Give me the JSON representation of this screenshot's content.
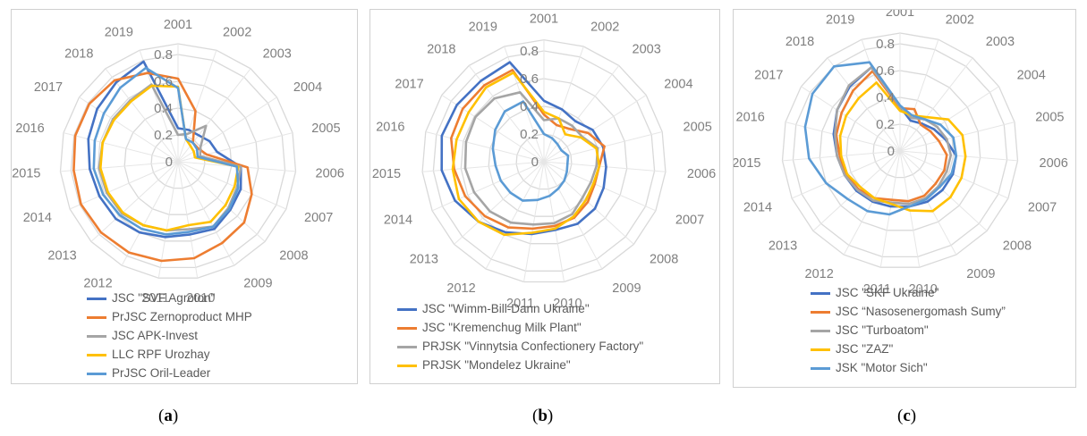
{
  "chart_data": [
    {
      "type": "radar",
      "panel_label": "a",
      "categories": [
        "2001",
        "2002",
        "2003",
        "2004",
        "2005",
        "2006",
        "2007",
        "2008",
        "2009",
        "2010",
        "2011",
        "2012",
        "2013",
        "2014",
        "2015",
        "2016",
        "2017",
        "2018",
        "2019"
      ],
      "radial_ticks": [
        "0",
        "0.2",
        "0.4",
        "0.6",
        "0.8"
      ],
      "rlim": [
        0,
        0.8
      ],
      "series": [
        {
          "name": "JSC \"SVF Agroton\"",
          "color": "#4472C4",
          "values": [
            0.25,
            0.25,
            0.25,
            0.28,
            0.3,
            0.47,
            0.51,
            0.53,
            0.57,
            0.55,
            0.57,
            0.6,
            0.63,
            0.64,
            0.66,
            0.69,
            0.72,
            0.75,
            0.79
          ]
        },
        {
          "name": "PrJSC Zernoproduct MHP",
          "color": "#ED7D31",
          "values": [
            0.62,
            0.4,
            0.18,
            0.18,
            0.22,
            0.52,
            0.6,
            0.67,
            0.69,
            0.73,
            0.75,
            0.77,
            0.78,
            0.79,
            0.78,
            0.79,
            0.79,
            0.77,
            0.7
          ]
        },
        {
          "name": "JSC APK-Invest",
          "color": "#A5A5A5",
          "values": [
            0.2,
            0.22,
            0.34,
            0.2,
            0.17,
            0.47,
            0.48,
            0.51,
            0.55,
            0.51,
            0.52,
            0.54,
            0.57,
            0.58,
            0.59,
            0.58,
            0.58,
            0.58,
            0.61
          ]
        },
        {
          "name": " LLC RPF Urozhay",
          "color": "#FFC000",
          "values": [
            0.56,
            0.18,
            0.15,
            0.14,
            0.13,
            0.45,
            0.46,
            0.48,
            0.51,
            0.48,
            0.52,
            0.54,
            0.56,
            0.57,
            0.58,
            0.58,
            0.57,
            0.57,
            0.6
          ]
        },
        {
          "name": "PrJSC Oril-Leader",
          "color": "#5B9BD5",
          "values": [
            0.55,
            0.18,
            0.18,
            0.17,
            0.15,
            0.44,
            0.49,
            0.52,
            0.55,
            0.53,
            0.55,
            0.57,
            0.59,
            0.61,
            0.63,
            0.64,
            0.66,
            0.7,
            0.74
          ]
        }
      ]
    },
    {
      "type": "radar",
      "panel_label": "b",
      "categories": [
        "2001",
        "2002",
        "2003",
        "2004",
        "2005",
        "2006",
        "2007",
        "2008",
        "2009",
        "2010",
        "2011",
        "2012",
        "2013",
        "2014",
        "2015",
        "2016",
        "2017",
        "2018",
        "2019"
      ],
      "radial_ticks": [
        "0",
        "0.2",
        "0.4",
        "0.6",
        "0.8"
      ],
      "rlim": [
        0,
        0.8
      ],
      "series": [
        {
          "name": "JSC \"Wimm-Bill-Dann Ukraine\"",
          "color": "#4472C4",
          "values": [
            0.44,
            0.4,
            0.37,
            0.42,
            0.44,
            0.45,
            0.47,
            0.5,
            0.51,
            0.5,
            0.53,
            0.58,
            0.64,
            0.7,
            0.74,
            0.76,
            0.75,
            0.74,
            0.76
          ]
        },
        {
          "name": "JSC \"Kremenchug Milk Plant\"",
          "color": "#ED7D31",
          "values": [
            0.34,
            0.28,
            0.3,
            0.38,
            0.45,
            0.4,
            0.4,
            0.43,
            0.46,
            0.47,
            0.49,
            0.54,
            0.58,
            0.62,
            0.65,
            0.69,
            0.7,
            0.7,
            0.7
          ]
        },
        {
          "name": "PRJSK \"Vinnytsia Confectionery Factory\"",
          "color": "#A5A5A5",
          "values": [
            0.3,
            0.33,
            0.33,
            0.33,
            0.4,
            0.38,
            0.37,
            0.38,
            0.43,
            0.45,
            0.46,
            0.5,
            0.53,
            0.55,
            0.57,
            0.58,
            0.59,
            0.58,
            0.53
          ]
        },
        {
          "name": "PRJSK \"Mondelez Ukraine\"",
          "color": "#FFC000",
          "values": [
            0.36,
            0.33,
            0.25,
            0.32,
            0.39,
            0.4,
            0.39,
            0.41,
            0.45,
            0.49,
            0.52,
            0.6,
            0.64,
            0.67,
            0.66,
            0.65,
            0.65,
            0.68,
            0.68
          ]
        },
        {
          "name": "",
          "color": "#5B9BD5",
          "values": [
            0.2,
            0.18,
            0.16,
            0.15,
            0.18,
            0.17,
            0.18,
            0.2,
            0.22,
            0.25,
            0.28,
            0.32,
            0.33,
            0.34,
            0.35,
            0.38,
            0.42,
            0.46,
            0.46
          ]
        }
      ]
    },
    {
      "type": "radar",
      "panel_label": "c",
      "categories": [
        "2001",
        "2002",
        "2003",
        "2004",
        "2005",
        "2006",
        "2007",
        "2008",
        "2009",
        "2010",
        "2011",
        "2012",
        "2013",
        "2014",
        "2015",
        "2016",
        "2017",
        "2018",
        "2019"
      ],
      "radial_ticks": [
        "0",
        "0.2",
        "0.4",
        "0.6",
        "0.8"
      ],
      "rlim": [
        0,
        0.8
      ],
      "series": [
        {
          "name": "JSC \"SKF Ukraine\"",
          "color": "#4472C4",
          "values": [
            0.33,
            0.24,
            0.26,
            0.3,
            0.35,
            0.42,
            0.43,
            0.43,
            0.43,
            0.42,
            0.42,
            0.43,
            0.44,
            0.45,
            0.47,
            0.51,
            0.56,
            0.61,
            0.66
          ]
        },
        {
          "name": "JSC “Nasosenergomash Sumy”",
          "color": "#ED7D31",
          "values": [
            0.32,
            0.33,
            0.25,
            0.27,
            0.3,
            0.35,
            0.36,
            0.36,
            0.38,
            0.38,
            0.37,
            0.4,
            0.42,
            0.44,
            0.45,
            0.49,
            0.52,
            0.57,
            0.63
          ]
        },
        {
          "name": "JSC \"Turboatom\"",
          "color": "#A5A5A5",
          "values": [
            0.33,
            0.26,
            0.3,
            0.33,
            0.36,
            0.38,
            0.38,
            0.39,
            0.4,
            0.4,
            0.39,
            0.42,
            0.43,
            0.45,
            0.47,
            0.5,
            0.56,
            0.62,
            0.66
          ]
        },
        {
          "name": "JSC \"ZAZ\"",
          "color": "#FFC000",
          "values": [
            0.3,
            0.28,
            0.32,
            0.43,
            0.48,
            0.49,
            0.5,
            0.51,
            0.51,
            0.45,
            0.4,
            0.4,
            0.4,
            0.43,
            0.44,
            0.46,
            0.48,
            0.5,
            0.54
          ]
        },
        {
          "name": "JSK \"Motor Sich\"",
          "color": "#5B9BD5",
          "values": [
            0.34,
            0.28,
            0.3,
            0.36,
            0.41,
            0.42,
            0.42,
            0.4,
            0.41,
            0.42,
            0.48,
            0.51,
            0.53,
            0.6,
            0.68,
            0.73,
            0.78,
            0.8,
            0.7
          ]
        }
      ]
    }
  ],
  "captions": [
    {
      "open": "(",
      "letter": "a",
      "close": ")"
    },
    {
      "open": "(",
      "letter": "b",
      "close": ")"
    },
    {
      "open": "(",
      "letter": "c",
      "close": ")"
    }
  ]
}
